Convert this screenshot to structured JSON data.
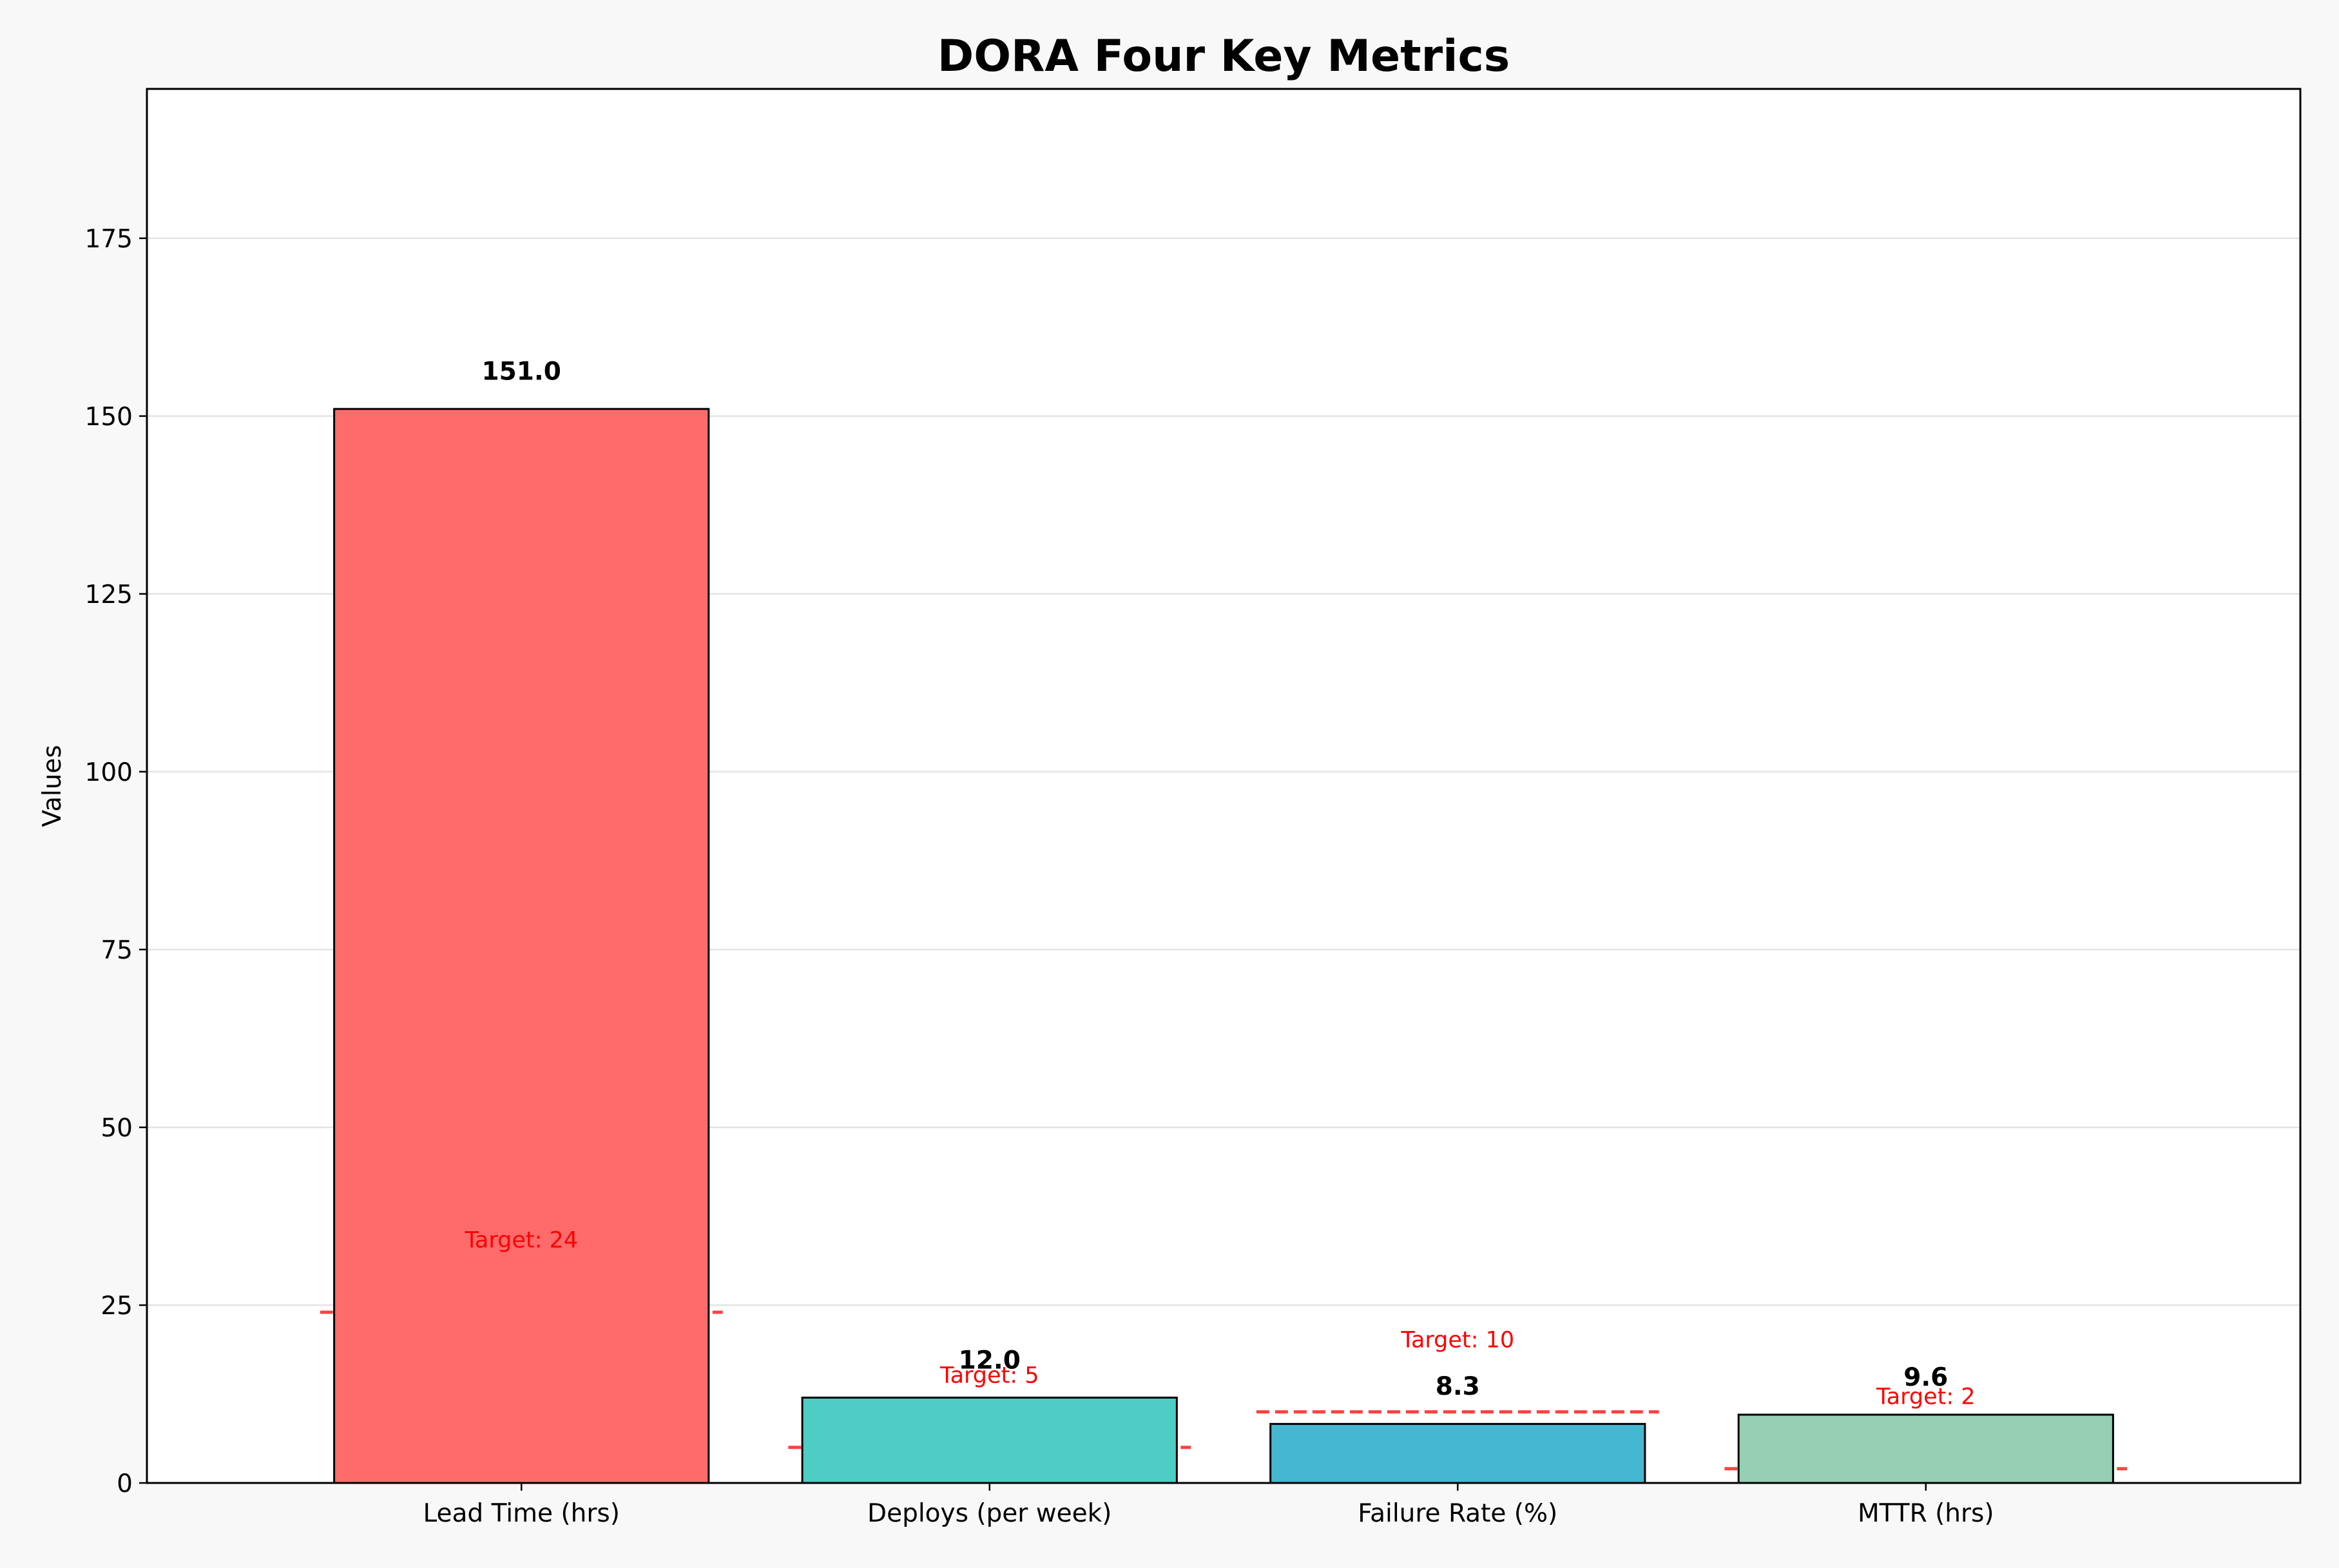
{
  "chart_data": {
    "type": "bar",
    "title": "DORA Four Key Metrics",
    "xlabel": "",
    "ylabel": "Values",
    "ylim": [
      0,
      196
    ],
    "yticks": [
      0,
      25,
      50,
      75,
      100,
      125,
      150,
      175
    ],
    "grid": "horizontal",
    "categories": [
      "Lead Time (hrs)",
      "Deploys (per week)",
      "Failure Rate (%)",
      "MTTR (hrs)"
    ],
    "values": [
      151.0,
      12.0,
      8.3,
      9.6
    ],
    "value_labels": [
      "151.0",
      "12.0",
      "8.3",
      "9.6"
    ],
    "colors": [
      "#ff6b6b",
      "#4ecdc4",
      "#45b7d1",
      "#96ceb4"
    ],
    "targets": [
      24,
      5,
      10,
      2
    ],
    "target_labels": [
      "Target: 24",
      "Target: 5",
      "Target: 10",
      "Target: 2"
    ],
    "target_color": "#ff0000"
  }
}
